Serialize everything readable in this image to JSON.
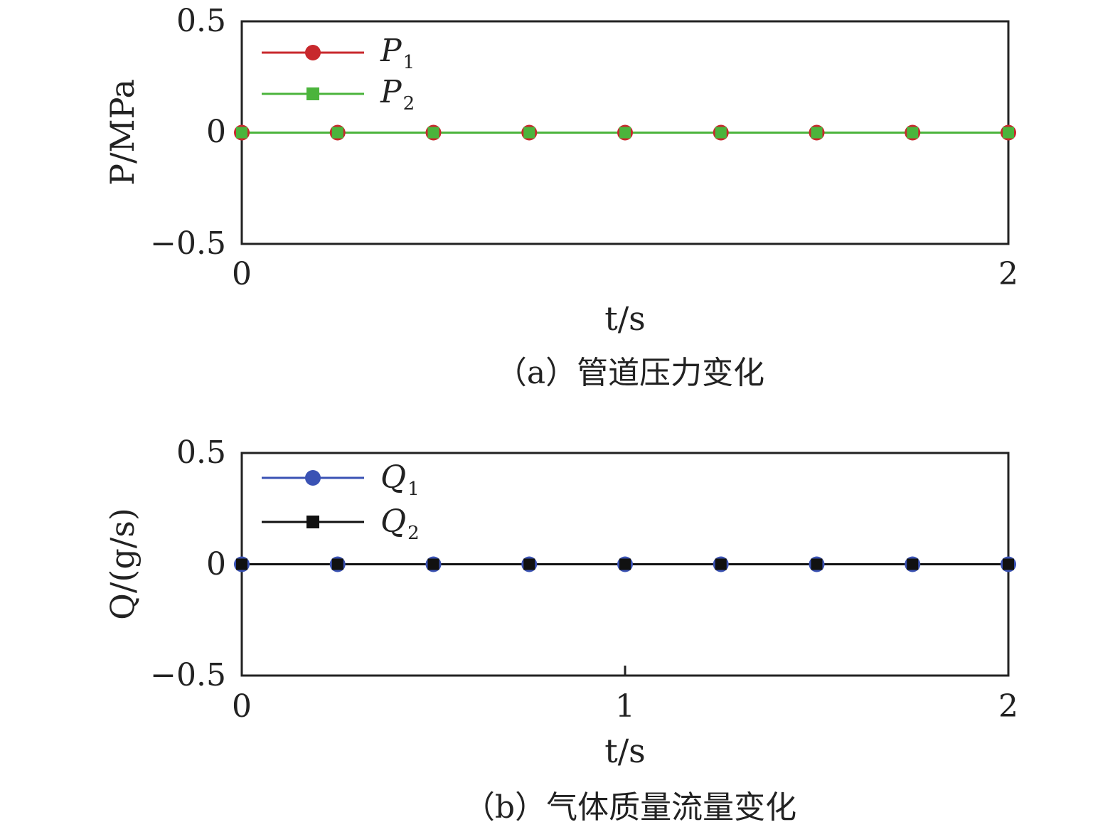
{
  "chart_data": [
    {
      "type": "line",
      "caption": "（a）管道压力变化",
      "xlabel": "t/s",
      "ylabel": "P/MPa",
      "xlim": [
        0,
        2
      ],
      "ylim": [
        -0.5,
        0.5
      ],
      "xticks": [
        "0",
        "2"
      ],
      "yticks": [
        "0.5",
        "0",
        "−0.5"
      ],
      "legend_position": "top-left",
      "x": [
        0,
        0.25,
        0.5,
        0.75,
        1.0,
        1.25,
        1.5,
        1.75,
        2.0
      ],
      "series": [
        {
          "name": "P",
          "subscript": "1",
          "color": "#c8282d",
          "marker": "circle",
          "values": [
            0,
            0,
            0,
            0,
            0,
            0,
            0,
            0,
            0
          ]
        },
        {
          "name": "P",
          "subscript": "2",
          "color": "#4bb43c",
          "marker": "square",
          "values": [
            0,
            0,
            0,
            0,
            0,
            0,
            0,
            0,
            0
          ]
        }
      ]
    },
    {
      "type": "line",
      "caption": "（b）气体质量流量变化",
      "xlabel": "t/s",
      "ylabel": "Q/(g/s)",
      "xlim": [
        0,
        2
      ],
      "ylim": [
        -0.5,
        0.5
      ],
      "xticks": [
        "0",
        "1",
        "2"
      ],
      "yticks": [
        "0.5",
        "0",
        "−0.5"
      ],
      "legend_position": "top-left",
      "x": [
        0,
        0.25,
        0.5,
        0.75,
        1.0,
        1.25,
        1.5,
        1.75,
        2.0
      ],
      "series": [
        {
          "name": "Q",
          "subscript": "1",
          "color": "#3a52b4",
          "marker": "circle",
          "values": [
            0,
            0,
            0,
            0,
            0,
            0,
            0,
            0,
            0
          ]
        },
        {
          "name": "Q",
          "subscript": "2",
          "color": "#111111",
          "marker": "square",
          "values": [
            0,
            0,
            0,
            0,
            0,
            0,
            0,
            0,
            0
          ]
        }
      ]
    }
  ]
}
